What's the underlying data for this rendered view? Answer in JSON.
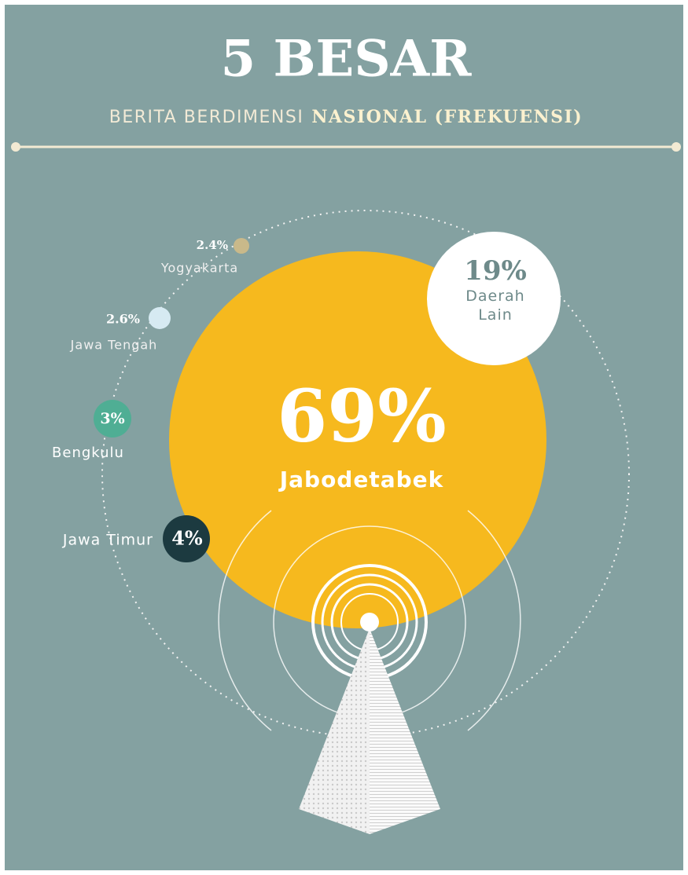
{
  "header": {
    "title": "5 BESAR",
    "subtitle_plain": "BERITA BERDIMENSI",
    "subtitle_bold": "NASIONAL (FREKUENSI)"
  },
  "items": [
    {
      "value": "69%",
      "label": "Jabodetabek"
    },
    {
      "value": "19%",
      "label": "Daerah Lain"
    },
    {
      "value": "4%",
      "label": "Jawa Timur"
    },
    {
      "value": "3%",
      "label": "Bengkulu"
    },
    {
      "value": "2.6%",
      "label": "Jawa Tengah"
    },
    {
      "value": "2.4%",
      "label": "Yogyakarta"
    }
  ]
}
